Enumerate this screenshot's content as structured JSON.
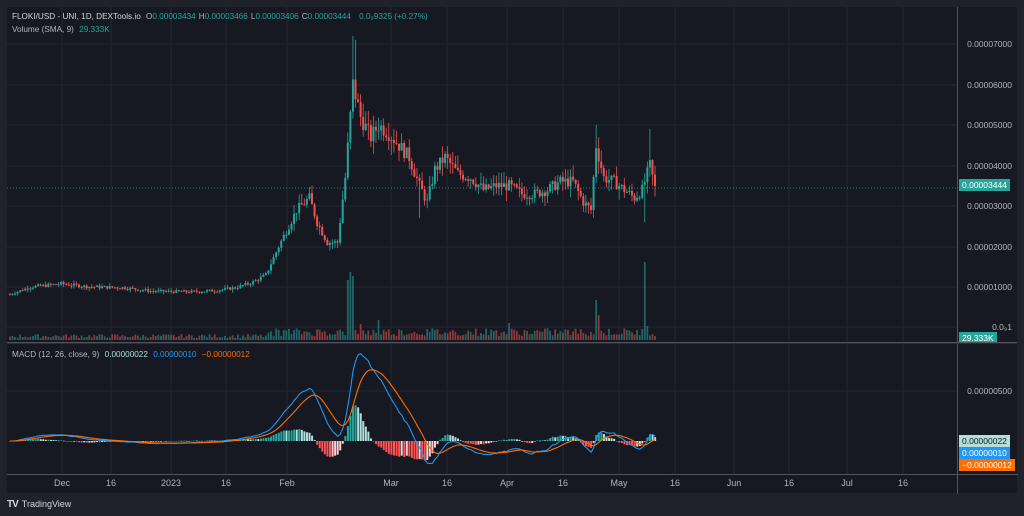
{
  "header": {
    "symbol": "FLOKI/USD - UNI, 1D, DEXTools.io",
    "ohlc": [
      {
        "key": "O",
        "value": "0.00003434"
      },
      {
        "key": "H",
        "value": "0.00003466"
      },
      {
        "key": "L",
        "value": "0.00003406"
      },
      {
        "key": "C",
        "value": "0.00003444"
      }
    ],
    "change": "0.0₉9325 (+0.27%)",
    "volume_label": "Volume (SMA, 9)",
    "volume_value": "29.333K"
  },
  "price_axis": {
    "ticks": [
      "0.00007000",
      "0.00006000",
      "0.00005000",
      "0.00004000",
      "0.00003000",
      "0.00002000",
      "0.00001000",
      "0.0₉1"
    ],
    "last_price_tag": "0.00003444",
    "volume_tag": "29.333K"
  },
  "macd": {
    "label": "MACD (12, 26, close, 9)",
    "hist_value": "0.00000022",
    "macd_value": "0.00000010",
    "signal_value": "−0.00000012",
    "axis_tick": "0.00000500",
    "tags": {
      "hist": "0.00000022",
      "macd": "0.00000010",
      "signal": "−0.00000012"
    }
  },
  "time_axis": {
    "labels": [
      "Dec",
      "16",
      "2023",
      "16",
      "Feb",
      "Mar",
      "16",
      "Apr",
      "16",
      "May",
      "16",
      "Jun",
      "16",
      "Jul",
      "16"
    ]
  },
  "footer": {
    "brand": "TradingView",
    "logo": "TV"
  },
  "colors": {
    "up": "#26a69a",
    "down": "#ef5350",
    "macd_line": "#2962ff",
    "signal_line": "#ff6d00",
    "hist_up_strong": "#26a69a",
    "hist_up_weak": "#b2dfdb",
    "hist_down_strong": "#ff5252",
    "hist_down_weak": "#ffcdd2",
    "background": "#161822",
    "grid": "#242733"
  },
  "chart_data": {
    "type": "candlestick",
    "title": "FLOKI/USD - UNI, 1D, DEXTools.io",
    "ylim": [
      0,
      7.5e-05
    ],
    "x_ticks": [
      "Dec",
      "16",
      "2023",
      "16",
      "Feb",
      "Mar",
      "16",
      "Apr",
      "16",
      "May",
      "16",
      "Jun",
      "16",
      "Jul",
      "16"
    ],
    "last_close": 3.444e-05,
    "approx_path": [
      {
        "period": "late Nov",
        "price": 8.5e-06
      },
      {
        "period": "Dec",
        "price": 1.08e-05
      },
      {
        "period": "16 Dec",
        "price": 1e-05
      },
      {
        "period": "2023",
        "price": 8.8e-06
      },
      {
        "period": "16 Jan",
        "price": 9e-06
      },
      {
        "period": "late Jan",
        "price": 1.2e-05
      },
      {
        "period": "Feb",
        "price": 3e-05
      },
      {
        "period": "mid Feb",
        "price": 2e-05
      },
      {
        "period": "peak Feb",
        "price": 7.1e-05
      },
      {
        "period": "late Feb",
        "price": 5e-05
      },
      {
        "period": "Mar",
        "price": 4.2e-05
      },
      {
        "period": "16 Mar",
        "price": 3.8e-05
      },
      {
        "period": "Apr",
        "price": 3.4e-05
      },
      {
        "period": "16 Apr",
        "price": 3.6e-05
      },
      {
        "period": "late Apr",
        "price": 2.9e-05
      },
      {
        "period": "May",
        "price": 3.4e-05
      },
      {
        "period": "early May",
        "price": 3.444e-05
      }
    ]
  }
}
